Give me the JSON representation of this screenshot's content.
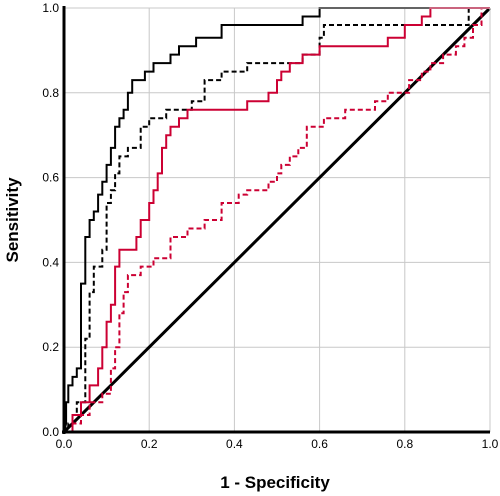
{
  "chart_data": {
    "type": "line",
    "title": "",
    "xlabel": "1 - Specificity",
    "ylabel": "Sensitivity",
    "xlim": [
      0,
      1
    ],
    "ylim": [
      0,
      1
    ],
    "xticks": [
      "0.0",
      "0.2",
      "0.4",
      "0.6",
      "0.8",
      "1.0"
    ],
    "yticks": [
      "0.0",
      "0.2",
      "0.4",
      "0.6",
      "0.8",
      "1.0"
    ],
    "grid": true,
    "legend": "none",
    "series": [
      {
        "color": "#000000",
        "style": "solid",
        "points": [
          [
            0,
            0
          ],
          [
            0.005,
            0.02
          ],
          [
            0.005,
            0.07
          ],
          [
            0.01,
            0.07
          ],
          [
            0.01,
            0.11
          ],
          [
            0.02,
            0.11
          ],
          [
            0.02,
            0.13
          ],
          [
            0.03,
            0.13
          ],
          [
            0.03,
            0.15
          ],
          [
            0.04,
            0.15
          ],
          [
            0.04,
            0.35
          ],
          [
            0.05,
            0.35
          ],
          [
            0.05,
            0.46
          ],
          [
            0.06,
            0.46
          ],
          [
            0.06,
            0.5
          ],
          [
            0.07,
            0.5
          ],
          [
            0.07,
            0.52
          ],
          [
            0.08,
            0.52
          ],
          [
            0.08,
            0.56
          ],
          [
            0.09,
            0.56
          ],
          [
            0.09,
            0.59
          ],
          [
            0.1,
            0.59
          ],
          [
            0.1,
            0.63
          ],
          [
            0.11,
            0.63
          ],
          [
            0.11,
            0.67
          ],
          [
            0.12,
            0.67
          ],
          [
            0.12,
            0.72
          ],
          [
            0.13,
            0.72
          ],
          [
            0.13,
            0.74
          ],
          [
            0.14,
            0.74
          ],
          [
            0.14,
            0.76
          ],
          [
            0.15,
            0.76
          ],
          [
            0.15,
            0.8
          ],
          [
            0.16,
            0.8
          ],
          [
            0.16,
            0.83
          ],
          [
            0.19,
            0.83
          ],
          [
            0.19,
            0.85
          ],
          [
            0.21,
            0.85
          ],
          [
            0.21,
            0.87
          ],
          [
            0.25,
            0.87
          ],
          [
            0.25,
            0.89
          ],
          [
            0.27,
            0.89
          ],
          [
            0.27,
            0.91
          ],
          [
            0.31,
            0.91
          ],
          [
            0.31,
            0.93
          ],
          [
            0.37,
            0.93
          ],
          [
            0.37,
            0.96
          ],
          [
            0.56,
            0.96
          ],
          [
            0.56,
            0.98
          ],
          [
            0.6,
            0.98
          ],
          [
            0.6,
            1.0
          ],
          [
            1.0,
            1.0
          ]
        ]
      },
      {
        "color": "#000000",
        "style": "dashed",
        "points": [
          [
            0,
            0
          ],
          [
            0.01,
            0
          ],
          [
            0.01,
            0.02
          ],
          [
            0.02,
            0.02
          ],
          [
            0.02,
            0.04
          ],
          [
            0.03,
            0.04
          ],
          [
            0.03,
            0.07
          ],
          [
            0.05,
            0.07
          ],
          [
            0.05,
            0.22
          ],
          [
            0.06,
            0.22
          ],
          [
            0.06,
            0.33
          ],
          [
            0.07,
            0.33
          ],
          [
            0.07,
            0.39
          ],
          [
            0.09,
            0.39
          ],
          [
            0.09,
            0.43
          ],
          [
            0.1,
            0.43
          ],
          [
            0.1,
            0.54
          ],
          [
            0.11,
            0.54
          ],
          [
            0.11,
            0.57
          ],
          [
            0.12,
            0.57
          ],
          [
            0.12,
            0.61
          ],
          [
            0.13,
            0.61
          ],
          [
            0.13,
            0.65
          ],
          [
            0.15,
            0.65
          ],
          [
            0.15,
            0.67
          ],
          [
            0.18,
            0.67
          ],
          [
            0.18,
            0.72
          ],
          [
            0.2,
            0.72
          ],
          [
            0.2,
            0.74
          ],
          [
            0.24,
            0.74
          ],
          [
            0.24,
            0.76
          ],
          [
            0.3,
            0.76
          ],
          [
            0.3,
            0.78
          ],
          [
            0.33,
            0.78
          ],
          [
            0.33,
            0.83
          ],
          [
            0.37,
            0.83
          ],
          [
            0.37,
            0.85
          ],
          [
            0.43,
            0.85
          ],
          [
            0.43,
            0.87
          ],
          [
            0.56,
            0.87
          ],
          [
            0.56,
            0.89
          ],
          [
            0.6,
            0.89
          ],
          [
            0.6,
            0.93
          ],
          [
            0.61,
            0.93
          ],
          [
            0.61,
            0.96
          ],
          [
            0.95,
            0.96
          ],
          [
            0.95,
            1.0
          ],
          [
            1.0,
            1.0
          ]
        ]
      },
      {
        "color": "#cc0033",
        "style": "solid",
        "points": [
          [
            0,
            0
          ],
          [
            0.02,
            0
          ],
          [
            0.02,
            0.04
          ],
          [
            0.04,
            0.04
          ],
          [
            0.04,
            0.07
          ],
          [
            0.06,
            0.07
          ],
          [
            0.06,
            0.11
          ],
          [
            0.08,
            0.11
          ],
          [
            0.08,
            0.15
          ],
          [
            0.09,
            0.15
          ],
          [
            0.09,
            0.2
          ],
          [
            0.1,
            0.2
          ],
          [
            0.1,
            0.26
          ],
          [
            0.11,
            0.26
          ],
          [
            0.11,
            0.3
          ],
          [
            0.12,
            0.3
          ],
          [
            0.12,
            0.39
          ],
          [
            0.13,
            0.39
          ],
          [
            0.13,
            0.43
          ],
          [
            0.17,
            0.43
          ],
          [
            0.17,
            0.46
          ],
          [
            0.18,
            0.46
          ],
          [
            0.18,
            0.5
          ],
          [
            0.2,
            0.5
          ],
          [
            0.2,
            0.54
          ],
          [
            0.21,
            0.54
          ],
          [
            0.21,
            0.57
          ],
          [
            0.22,
            0.57
          ],
          [
            0.22,
            0.61
          ],
          [
            0.23,
            0.61
          ],
          [
            0.23,
            0.67
          ],
          [
            0.24,
            0.67
          ],
          [
            0.24,
            0.7
          ],
          [
            0.25,
            0.7
          ],
          [
            0.25,
            0.72
          ],
          [
            0.27,
            0.72
          ],
          [
            0.27,
            0.74
          ],
          [
            0.29,
            0.74
          ],
          [
            0.29,
            0.76
          ],
          [
            0.43,
            0.76
          ],
          [
            0.43,
            0.78
          ],
          [
            0.48,
            0.78
          ],
          [
            0.48,
            0.8
          ],
          [
            0.5,
            0.8
          ],
          [
            0.5,
            0.83
          ],
          [
            0.51,
            0.83
          ],
          [
            0.51,
            0.85
          ],
          [
            0.53,
            0.85
          ],
          [
            0.53,
            0.87
          ],
          [
            0.56,
            0.87
          ],
          [
            0.56,
            0.89
          ],
          [
            0.6,
            0.89
          ],
          [
            0.6,
            0.91
          ],
          [
            0.76,
            0.91
          ],
          [
            0.76,
            0.93
          ],
          [
            0.8,
            0.93
          ],
          [
            0.8,
            0.96
          ],
          [
            0.84,
            0.96
          ],
          [
            0.84,
            0.98
          ],
          [
            0.86,
            0.98
          ],
          [
            0.86,
            1.0
          ],
          [
            1.0,
            1.0
          ]
        ]
      },
      {
        "color": "#cc0033",
        "style": "dashed",
        "points": [
          [
            0,
            0
          ],
          [
            0.02,
            0
          ],
          [
            0.02,
            0.02
          ],
          [
            0.04,
            0.02
          ],
          [
            0.04,
            0.04
          ],
          [
            0.06,
            0.04
          ],
          [
            0.06,
            0.07
          ],
          [
            0.09,
            0.07
          ],
          [
            0.09,
            0.09
          ],
          [
            0.11,
            0.09
          ],
          [
            0.11,
            0.15
          ],
          [
            0.12,
            0.15
          ],
          [
            0.12,
            0.2
          ],
          [
            0.13,
            0.2
          ],
          [
            0.13,
            0.28
          ],
          [
            0.14,
            0.28
          ],
          [
            0.14,
            0.33
          ],
          [
            0.15,
            0.33
          ],
          [
            0.15,
            0.37
          ],
          [
            0.18,
            0.37
          ],
          [
            0.18,
            0.39
          ],
          [
            0.21,
            0.39
          ],
          [
            0.21,
            0.41
          ],
          [
            0.25,
            0.41
          ],
          [
            0.25,
            0.46
          ],
          [
            0.29,
            0.46
          ],
          [
            0.29,
            0.48
          ],
          [
            0.33,
            0.48
          ],
          [
            0.33,
            0.5
          ],
          [
            0.37,
            0.5
          ],
          [
            0.37,
            0.54
          ],
          [
            0.41,
            0.54
          ],
          [
            0.41,
            0.56
          ],
          [
            0.43,
            0.56
          ],
          [
            0.43,
            0.57
          ],
          [
            0.48,
            0.57
          ],
          [
            0.48,
            0.59
          ],
          [
            0.5,
            0.59
          ],
          [
            0.5,
            0.61
          ],
          [
            0.51,
            0.61
          ],
          [
            0.51,
            0.63
          ],
          [
            0.53,
            0.63
          ],
          [
            0.53,
            0.65
          ],
          [
            0.55,
            0.65
          ],
          [
            0.55,
            0.67
          ],
          [
            0.57,
            0.67
          ],
          [
            0.57,
            0.72
          ],
          [
            0.61,
            0.72
          ],
          [
            0.61,
            0.74
          ],
          [
            0.66,
            0.74
          ],
          [
            0.66,
            0.76
          ],
          [
            0.73,
            0.76
          ],
          [
            0.73,
            0.78
          ],
          [
            0.76,
            0.78
          ],
          [
            0.76,
            0.8
          ],
          [
            0.81,
            0.8
          ],
          [
            0.81,
            0.83
          ],
          [
            0.84,
            0.83
          ],
          [
            0.84,
            0.85
          ],
          [
            0.86,
            0.85
          ],
          [
            0.86,
            0.87
          ],
          [
            0.89,
            0.87
          ],
          [
            0.89,
            0.89
          ],
          [
            0.92,
            0.89
          ],
          [
            0.92,
            0.91
          ],
          [
            0.94,
            0.91
          ],
          [
            0.94,
            0.93
          ],
          [
            0.96,
            0.93
          ],
          [
            0.96,
            0.96
          ],
          [
            0.98,
            0.96
          ],
          [
            0.98,
            1.0
          ],
          [
            1.0,
            1.0
          ]
        ]
      },
      {
        "color": "#000000",
        "style": "solid",
        "points": [
          [
            0,
            0
          ],
          [
            1,
            1
          ]
        ]
      }
    ]
  }
}
